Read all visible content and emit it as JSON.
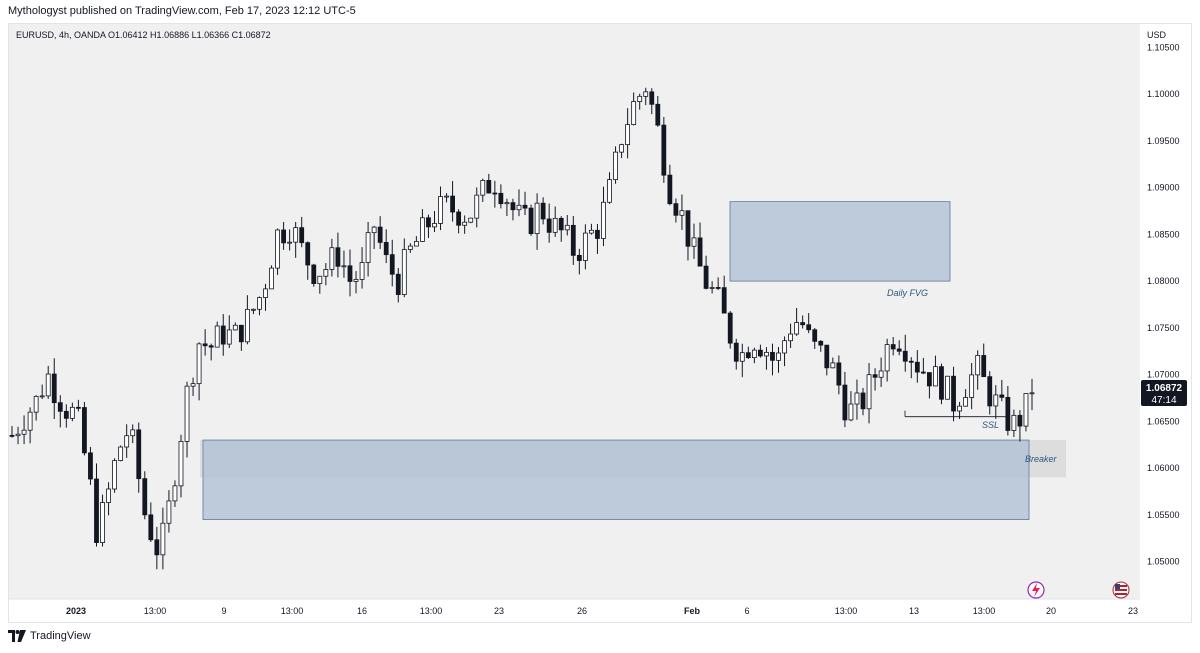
{
  "header": {
    "publish_line": "Mythologyst published on TradingView.com, Feb 17, 2023 12:12 UTC-5",
    "symbol_line": "EURUSD, 4h, OANDA  O1.06412  H1.06886  L1.06366  C1.06872"
  },
  "footer": {
    "brand": "TradingView"
  },
  "colors": {
    "plot_bg": "#f0f0f0",
    "candle": "#131722",
    "zone_fill": "#b2c2d4",
    "zone_stroke": "#5b7a99",
    "annotation": "#2a5580",
    "price_tag_bg": "#131722",
    "icon_purple": "#9c27b0"
  },
  "icons": [
    "lightning-icon",
    "us-flag-icon"
  ],
  "chart_data": {
    "type": "candlestick",
    "symbol": "EURUSD",
    "timeframe": "4h",
    "exchange": "OANDA",
    "ohlc": {
      "open": 1.06412,
      "high": 1.06886,
      "low": 1.06366,
      "close": 1.06872
    },
    "currency": "USD",
    "ylim": [
      1.046,
      1.1075
    ],
    "yticks": [
      "1.10500",
      "1.10000",
      "1.09500",
      "1.09000",
      "1.08500",
      "1.08000",
      "1.07500",
      "1.07000",
      "1.06500",
      "1.06000",
      "1.05500",
      "1.05000"
    ],
    "xticks": [
      "2023",
      "13:00",
      "9",
      "13:00",
      "16",
      "13:00",
      "23",
      "26",
      "Feb",
      "6",
      "13:00",
      "13",
      "13:00",
      "20",
      "23"
    ],
    "last_price": "1.06872",
    "countdown": "47:14",
    "close_path": [
      [
        0,
        1.0635
      ],
      [
        10,
        1.0655
      ],
      [
        20,
        1.067
      ],
      [
        30,
        1.07
      ],
      [
        38,
        1.068
      ],
      [
        45,
        1.0665
      ],
      [
        55,
        1.0655
      ],
      [
        65,
        1.059
      ],
      [
        72,
        1.053
      ],
      [
        80,
        1.0565
      ],
      [
        88,
        1.061
      ],
      [
        96,
        1.064
      ],
      [
        104,
        1.062
      ],
      [
        110,
        1.056
      ],
      [
        118,
        1.053
      ],
      [
        124,
        1.051
      ],
      [
        130,
        1.0535
      ],
      [
        138,
        1.06
      ],
      [
        148,
        1.068
      ],
      [
        158,
        1.0735
      ],
      [
        168,
        1.073
      ],
      [
        178,
        1.0745
      ],
      [
        188,
        1.074
      ],
      [
        200,
        1.076
      ],
      [
        212,
        1.079
      ],
      [
        224,
        1.085
      ],
      [
        236,
        1.086
      ],
      [
        246,
        1.083
      ],
      [
        256,
        1.081
      ],
      [
        266,
        1.0815
      ],
      [
        276,
        1.083
      ],
      [
        286,
        1.08
      ],
      [
        296,
        1.081
      ],
      [
        306,
        1.086
      ],
      [
        316,
        1.082
      ],
      [
        326,
        1.08
      ],
      [
        336,
        1.083
      ],
      [
        346,
        1.085
      ],
      [
        356,
        1.087
      ],
      [
        366,
        1.088
      ],
      [
        376,
        1.0875
      ],
      [
        386,
        1.087
      ],
      [
        396,
        1.089
      ],
      [
        406,
        1.091
      ],
      [
        416,
        1.0895
      ],
      [
        426,
        1.087
      ],
      [
        436,
        1.086
      ],
      [
        446,
        1.088
      ],
      [
        456,
        1.086
      ],
      [
        466,
        1.085
      ],
      [
        476,
        1.083
      ],
      [
        486,
        1.0845
      ],
      [
        496,
        1.086
      ],
      [
        506,
        1.09
      ],
      [
        516,
        1.096
      ],
      [
        526,
        1.099
      ],
      [
        536,
        1.101
      ],
      [
        546,
        1.096
      ],
      [
        556,
        1.09
      ],
      [
        566,
        1.087
      ],
      [
        576,
        1.083
      ],
      [
        586,
        1.08
      ],
      [
        596,
        1.078
      ],
      [
        606,
        1.0745
      ],
      [
        616,
        1.072
      ],
      [
        626,
        1.074
      ],
      [
        636,
        1.073
      ],
      [
        646,
        1.071
      ],
      [
        656,
        1.075
      ],
      [
        666,
        1.076
      ],
      [
        676,
        1.073
      ],
      [
        686,
        1.072
      ],
      [
        696,
        1.07
      ],
      [
        706,
        1.066
      ],
      [
        716,
        1.0665
      ],
      [
        726,
        1.069
      ],
      [
        736,
        1.072
      ],
      [
        746,
        1.0745
      ],
      [
        756,
        1.073
      ],
      [
        766,
        1.071
      ],
      [
        776,
        1.07
      ],
      [
        786,
        1.069
      ],
      [
        796,
        1.067
      ],
      [
        806,
        1.069
      ],
      [
        816,
        1.0705
      ],
      [
        826,
        1.068
      ],
      [
        836,
        1.066
      ],
      [
        846,
        1.0645
      ],
      [
        856,
        1.066
      ],
      [
        862,
        1.0687
      ]
    ],
    "annotations": [
      {
        "label": "Daily FVG",
        "y_low": 1.08,
        "y_high": 1.0885
      },
      {
        "label": "Breaker",
        "y_low": 1.059,
        "y_high": 1.063
      },
      {
        "label": "SSL",
        "level": 1.0655
      },
      {
        "label": "",
        "y_low": 1.0545,
        "y_high": 1.063
      }
    ]
  }
}
